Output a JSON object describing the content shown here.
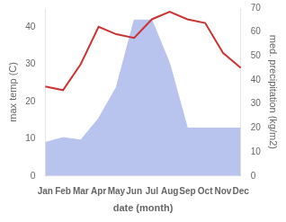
{
  "chart_data": {
    "type": "line",
    "categories": [
      "Jan",
      "Feb",
      "Mar",
      "Apr",
      "May",
      "Jun",
      "Jul",
      "Aug",
      "Sep",
      "Oct",
      "Nov",
      "Dec"
    ],
    "series": [
      {
        "type": "area",
        "color": "#b8c4ee",
        "axis": "y2",
        "values": [
          14,
          16,
          15,
          24,
          37,
          65,
          65,
          47,
          20,
          20,
          20,
          20
        ]
      },
      {
        "type": "line",
        "color": "#cc3333",
        "values": [
          24,
          23,
          30,
          40,
          38,
          37,
          42,
          44,
          42,
          41,
          33,
          29
        ]
      }
    ],
    "xlabel": "date (month)",
    "ylabel": "max temp (C)",
    "y2label": "med. precipitation (kg/m2)",
    "ylim": [
      0,
      45
    ],
    "yticks": [
      0,
      10,
      20,
      30,
      40
    ],
    "y2lim": [
      0,
      70
    ],
    "y2ticks": [
      0,
      10,
      20,
      30,
      40,
      50,
      60,
      70
    ],
    "grid": false
  }
}
